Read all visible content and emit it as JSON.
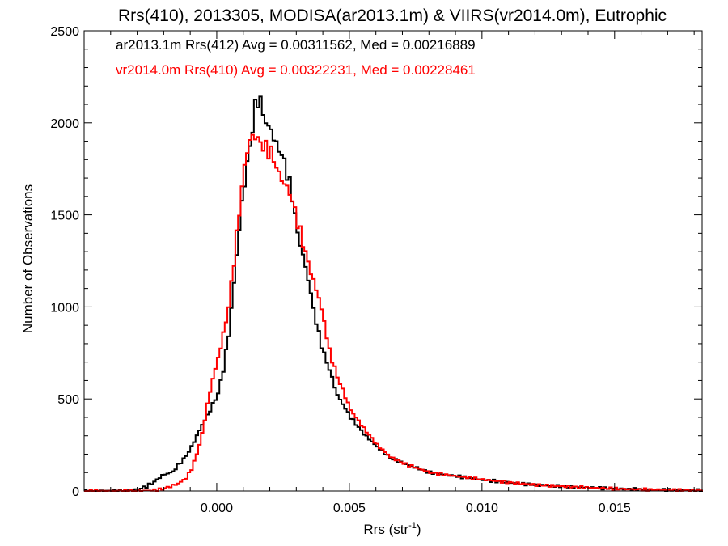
{
  "chart_data": {
    "type": "line",
    "title": "Rrs(410), 2013305, MODISA(ar2013.1m) & VIIRS(vr2014.0m), Eutrophic",
    "xlabel": "Rrs (str",
    "xlabel_sup": "-1",
    "xlabel_close": ")",
    "ylabel": "Number of Observations",
    "xlim": [
      -0.005,
      0.0183
    ],
    "ylim": [
      0,
      2500
    ],
    "x_ticks": [
      0.0,
      0.005,
      0.01,
      0.015
    ],
    "x_tick_labels": [
      "0.000",
      "0.005",
      "0.010",
      "0.015"
    ],
    "y_ticks": [
      0,
      500,
      1000,
      1500,
      2000,
      2500
    ],
    "y_tick_labels": [
      "0",
      "500",
      "1000",
      "1500",
      "2000",
      "2500"
    ],
    "grid": false,
    "legend_position": "top-left",
    "series": [
      {
        "name": "ar2013.1m Rrs(412) Avg = 0.00311562, Med = 0.00216889",
        "color": "#000000",
        "points": [
          [
            -0.005,
            0
          ],
          [
            -0.0035,
            0
          ],
          [
            -0.003,
            10
          ],
          [
            -0.0027,
            25
          ],
          [
            -0.0024,
            50
          ],
          [
            -0.0021,
            85
          ],
          [
            -0.0019,
            95
          ],
          [
            -0.0017,
            105
          ],
          [
            -0.0015,
            140
          ],
          [
            -0.0012,
            190
          ],
          [
            -0.001,
            240
          ],
          [
            -0.0008,
            300
          ],
          [
            -0.0006,
            360
          ],
          [
            -0.0004,
            410
          ],
          [
            -0.0002,
            470
          ],
          [
            0.0,
            530
          ],
          [
            0.0002,
            660
          ],
          [
            0.0004,
            850
          ],
          [
            0.0006,
            1130
          ],
          [
            0.0008,
            1430
          ],
          [
            0.001,
            1680
          ],
          [
            0.0012,
            1870
          ],
          [
            0.0014,
            2080
          ],
          [
            0.0015,
            2130
          ],
          [
            0.0016,
            2110
          ],
          [
            0.0018,
            2000
          ],
          [
            0.002,
            1960
          ],
          [
            0.0022,
            1880
          ],
          [
            0.0024,
            1830
          ],
          [
            0.0026,
            1730
          ],
          [
            0.0028,
            1600
          ],
          [
            0.003,
            1400
          ],
          [
            0.0032,
            1280
          ],
          [
            0.0034,
            1150
          ],
          [
            0.0036,
            990
          ],
          [
            0.0038,
            850
          ],
          [
            0.004,
            740
          ],
          [
            0.0042,
            660
          ],
          [
            0.0045,
            520
          ],
          [
            0.005,
            400
          ],
          [
            0.0055,
            310
          ],
          [
            0.006,
            240
          ],
          [
            0.0065,
            180
          ],
          [
            0.007,
            150
          ],
          [
            0.008,
            100
          ],
          [
            0.009,
            80
          ],
          [
            0.01,
            60
          ],
          [
            0.011,
            45
          ],
          [
            0.012,
            32
          ],
          [
            0.013,
            25
          ],
          [
            0.014,
            18
          ],
          [
            0.015,
            12
          ],
          [
            0.016,
            8
          ],
          [
            0.017,
            5
          ],
          [
            0.0183,
            3
          ]
        ]
      },
      {
        "name": "vr2014.0m Rrs(410) Avg = 0.00322231, Med = 0.00228461",
        "color": "#ff0000",
        "points": [
          [
            -0.005,
            0
          ],
          [
            -0.003,
            0
          ],
          [
            -0.0025,
            3
          ],
          [
            -0.0022,
            8
          ],
          [
            -0.002,
            15
          ],
          [
            -0.0018,
            25
          ],
          [
            -0.0015,
            40
          ],
          [
            -0.0012,
            70
          ],
          [
            -0.001,
            120
          ],
          [
            -0.0008,
            200
          ],
          [
            -0.0006,
            310
          ],
          [
            -0.0004,
            470
          ],
          [
            -0.0002,
            610
          ],
          [
            0.0,
            720
          ],
          [
            0.0002,
            850
          ],
          [
            0.0004,
            1000
          ],
          [
            0.0006,
            1250
          ],
          [
            0.0008,
            1520
          ],
          [
            0.001,
            1770
          ],
          [
            0.0012,
            1910
          ],
          [
            0.0014,
            1930
          ],
          [
            0.0016,
            1890
          ],
          [
            0.0018,
            1860
          ],
          [
            0.002,
            1840
          ],
          [
            0.0022,
            1760
          ],
          [
            0.0024,
            1690
          ],
          [
            0.0026,
            1650
          ],
          [
            0.0028,
            1580
          ],
          [
            0.003,
            1460
          ],
          [
            0.0032,
            1350
          ],
          [
            0.0034,
            1240
          ],
          [
            0.0036,
            1140
          ],
          [
            0.0038,
            1050
          ],
          [
            0.004,
            920
          ],
          [
            0.0042,
            760
          ],
          [
            0.0045,
            620
          ],
          [
            0.005,
            440
          ],
          [
            0.0055,
            340
          ],
          [
            0.006,
            250
          ],
          [
            0.0065,
            185
          ],
          [
            0.007,
            150
          ],
          [
            0.008,
            100
          ],
          [
            0.009,
            80
          ],
          [
            0.01,
            62
          ],
          [
            0.011,
            46
          ],
          [
            0.012,
            33
          ],
          [
            0.013,
            25
          ],
          [
            0.014,
            18
          ],
          [
            0.015,
            12
          ],
          [
            0.016,
            8
          ],
          [
            0.017,
            5
          ],
          [
            0.0183,
            3
          ]
        ]
      }
    ]
  }
}
